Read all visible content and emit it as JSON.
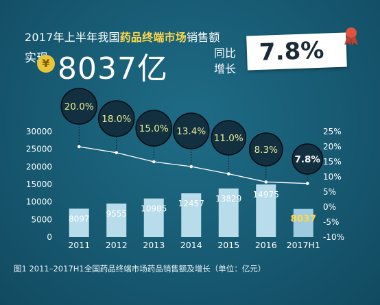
{
  "header": {
    "headline_prefix": "2017年上半年我国",
    "headline_highlight": "药品终端市场",
    "headline_suffix": "销售额",
    "lbl_shixian": "实现",
    "yen_symbol": "¥",
    "amount": "8037亿",
    "lbl_yoy_1": "同比",
    "lbl_yoy_2": "增长",
    "growth": "7.8%"
  },
  "caption": "图1  2011–2017H1全国药品终端市场药品销售额及增长（单位：亿元）",
  "colors": {
    "bar": "#b9dcea",
    "bar_highlight": "#9fcbe0",
    "line": "#ffffff",
    "bubble_text": "#e9ef9a",
    "axis_text": "#ffffff",
    "highlight_text": "#ffd84a"
  },
  "chart_data": {
    "type": "bar",
    "categories": [
      "2011",
      "2012",
      "2013",
      "2014",
      "2015",
      "2016",
      "2017H1"
    ],
    "series": [
      {
        "type": "bar",
        "axis": "left",
        "values": [
          8097,
          9555,
          10985,
          12457,
          13829,
          14975,
          8037
        ]
      },
      {
        "type": "line",
        "axis": "right",
        "values": [
          20.0,
          18.0,
          15.0,
          13.4,
          11.0,
          8.3,
          7.8
        ]
      }
    ],
    "bar_labels": [
      "8097",
      "9555",
      "10985",
      "12457",
      "13829",
      "14975",
      "8037"
    ],
    "growth_labels": [
      "20.0%",
      "18.0%",
      "15.0%",
      "13.4%",
      "11.0%",
      "8.3%",
      "7.8%"
    ],
    "y_left": {
      "min": 0,
      "max": 30000,
      "ticks": [
        0,
        5000,
        10000,
        15000,
        20000,
        25000,
        30000
      ]
    },
    "y_right": {
      "min": -10,
      "max": 25,
      "ticks": [
        -10,
        -5,
        0,
        5,
        10,
        15,
        20,
        25
      ],
      "tick_labels": [
        "-10%",
        "-5%",
        "0%",
        "5%",
        "10%",
        "15%",
        "20%",
        "25%"
      ]
    },
    "grid": false,
    "legend": "none"
  }
}
